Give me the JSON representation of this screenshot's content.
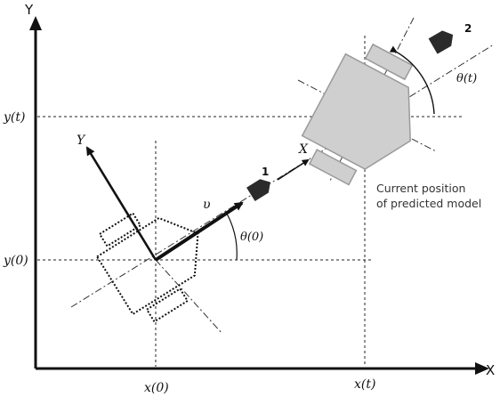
{
  "axes": {
    "x_title": "X",
    "y_title": "Y",
    "x0_label": "x(0)",
    "xt_label": "x(t)",
    "y0_label": "y(0)",
    "yt_label": "y(t)"
  },
  "robot_frame": {
    "x_axis_label": "X",
    "y_axis_label": "Y",
    "velocity_label": "υ",
    "theta0_label": "θ(0)",
    "thetat_label": "θ(t)"
  },
  "markers": {
    "marker1_label": "1",
    "marker2_label": "2"
  },
  "caption": {
    "line1": "Current position",
    "line2": "of predicted model"
  },
  "colors": {
    "ink": "#111111",
    "guide": "#222222",
    "predicted_fill": "#cfcfcf",
    "predicted_stroke": "#9a9a9a",
    "marker": "#2b2b2b"
  }
}
